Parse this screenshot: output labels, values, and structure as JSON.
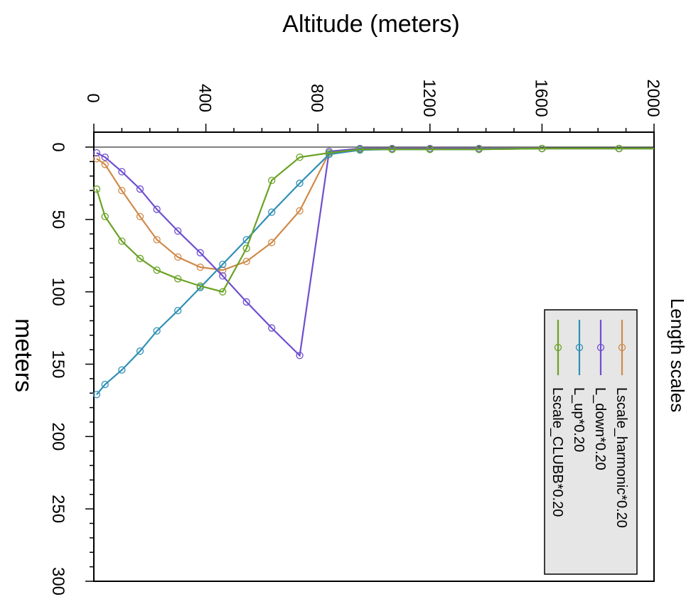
{
  "chart_data": {
    "type": "line",
    "orientation": "rotated-90-clockwise",
    "title": "Length scales",
    "xlabel": "Altitude (meters)",
    "ylabel": "meters",
    "xlim": [
      0,
      2000
    ],
    "ylim": [
      0,
      300
    ],
    "x_ticks": [
      "0",
      "400",
      "800",
      "1200",
      "1600",
      "2000"
    ],
    "y_ticks": [
      "0",
      "50",
      "100",
      "150",
      "200",
      "250",
      "300"
    ],
    "grid": false,
    "legend_position": "top-right",
    "series": [
      {
        "name": "Lscale_harmonic*0.20",
        "color": "#d08a4a",
        "x": [
          10,
          40,
          100,
          165,
          225,
          300,
          380,
          460,
          545,
          635,
          735,
          840,
          950,
          1065,
          1200,
          1375,
          1600,
          1875,
          2000
        ],
        "y": [
          8,
          12,
          30,
          48,
          64,
          76,
          83,
          85,
          79,
          66,
          44,
          4,
          1.5,
          1.5,
          1.5,
          1.5,
          1,
          1,
          1
        ]
      },
      {
        "name": "L_down*0.20",
        "color": "#6f4fd0",
        "x": [
          10,
          40,
          100,
          165,
          225,
          300,
          380,
          460,
          545,
          635,
          735,
          840,
          950,
          1065,
          1200,
          1375,
          1600,
          1875,
          2000
        ],
        "y": [
          4,
          7,
          17,
          29,
          43,
          58,
          73,
          89,
          107,
          125,
          144,
          3,
          1,
          1,
          1,
          1,
          1,
          1,
          1
        ]
      },
      {
        "name": "L_up*0.20",
        "color": "#2f8fb5",
        "x": [
          10,
          40,
          100,
          165,
          225,
          300,
          380,
          460,
          545,
          635,
          735,
          840,
          950,
          1065,
          1200,
          1375,
          1600,
          1875,
          2000
        ],
        "y": [
          171,
          164,
          154,
          141,
          127,
          113,
          97,
          81,
          64,
          45,
          25,
          5,
          2,
          1.5,
          1.5,
          1.5,
          1,
          1,
          1
        ]
      },
      {
        "name": "Lscale_CLUBB*0.20",
        "color": "#6aa224",
        "x": [
          10,
          40,
          100,
          165,
          225,
          300,
          380,
          460,
          545,
          635,
          735,
          840,
          950,
          1065,
          1200,
          1375,
          1600,
          1875,
          2000
        ],
        "y": [
          29,
          48,
          65,
          77,
          85,
          91,
          96,
          100,
          70,
          23,
          7,
          4,
          1.5,
          1.5,
          1.5,
          1.5,
          1,
          1,
          1
        ]
      }
    ]
  }
}
